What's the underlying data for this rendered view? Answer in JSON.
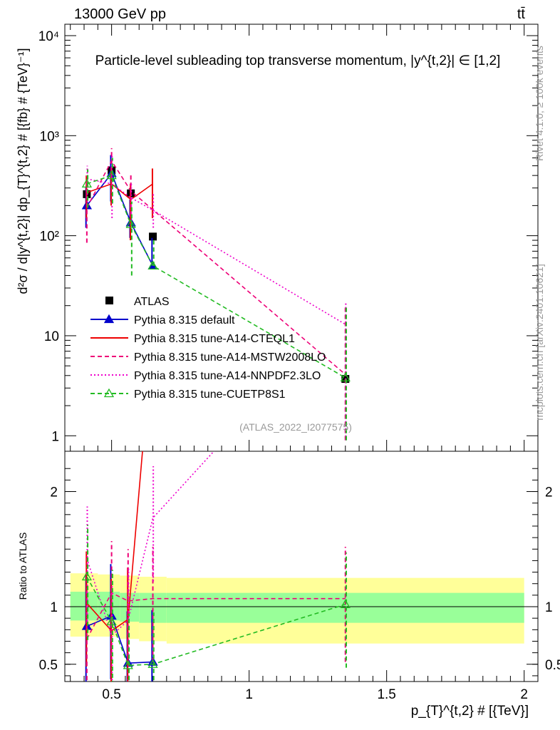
{
  "header": {
    "energy_label": "13000 GeV pp",
    "process_label": "tt̄",
    "side_label_rivet": "Rivet 4.1.0, ≥ 100k events",
    "side_label_mcplots": "mcplots.cern.ch [arXiv:2401.10621]"
  },
  "chart_data": [
    {
      "type": "line",
      "panel": "main",
      "title": "Particle-level subleading top transverse momentum, |y^{t,2}| ∈ [1,2]",
      "ylabel": "d²σ / d|y^{t,2}| dp_{T}^{t,2} # [{fb} # {TeV}⁻¹]",
      "yscale": "log",
      "xlim": [
        0.33,
        2.05
      ],
      "ylim": [
        0.7,
        13000
      ],
      "y_ticks": [
        {
          "value": 1,
          "label": "1"
        },
        {
          "value": 10,
          "label": "10"
        },
        {
          "value": 100,
          "label": "10²"
        },
        {
          "value": 1000,
          "label": "10³"
        },
        {
          "value": 10000,
          "label": "10⁴"
        }
      ],
      "analysis_tag": "(ATLAS_2022_I2077575)",
      "legend_position": "lower-left",
      "series": [
        {
          "name": "ATLAS",
          "color": "#000000",
          "style": "data",
          "x": [
            0.41,
            0.5,
            0.57,
            0.65,
            1.35
          ],
          "y": [
            260,
            450,
            265,
            98,
            3.7
          ]
        },
        {
          "name": "Pythia 8.315 default",
          "color": "#0000cc",
          "style": "solid-triangle",
          "x": [
            0.41,
            0.5,
            0.57,
            0.65
          ],
          "y": [
            200,
            420,
            135,
            50
          ],
          "err_lo": [
            120,
            220,
            95,
            49.9
          ],
          "err_hi": [
            310,
            640,
            230,
            95
          ]
        },
        {
          "name": "Pythia 8.315 tune-A14-CTEQL1",
          "color": "#ee0000",
          "style": "solid",
          "x": [
            0.41,
            0.5,
            0.57,
            0.65
          ],
          "y": [
            270,
            330,
            230,
            330
          ],
          "err_lo": [
            150,
            200,
            90,
            150
          ],
          "err_hi": [
            400,
            480,
            330,
            470
          ]
        },
        {
          "name": "Pythia 8.315 tune-A14-MSTW2008LO",
          "color": "#ee0077",
          "style": "dashed",
          "x": [
            0.41,
            0.5,
            0.57,
            1.35
          ],
          "y": [
            190,
            560,
            280,
            4.1
          ],
          "err_lo": [
            85,
            380,
            160,
            0.9
          ],
          "err_hi": [
            370,
            750,
            420,
            20
          ]
        },
        {
          "name": "Pythia 8.315 tune-A14-NNPDF2.3LO",
          "color": "#ee00cc",
          "style": "dotted",
          "x": [
            0.41,
            0.5,
            0.57,
            0.65,
            1.35
          ],
          "y": [
            370,
            330,
            240,
            180,
            13
          ],
          "err_lo": [
            200,
            150,
            130,
            120,
            0.9
          ],
          "err_hi": [
            500,
            650,
            330,
            260,
            22
          ]
        },
        {
          "name": "Pythia 8.315 tune-CUETP8S1",
          "color": "#22bb22",
          "style": "dashed-open-triangle",
          "x": [
            0.41,
            0.5,
            0.57,
            0.65,
            1.35
          ],
          "y": [
            330,
            400,
            130,
            50,
            3.8
          ],
          "err_lo": [
            190,
            210,
            40,
            49.9,
            0.9
          ],
          "err_hi": [
            460,
            600,
            220,
            90,
            20
          ]
        }
      ]
    },
    {
      "type": "line",
      "panel": "ratio",
      "xlabel": "p_{T}^{t,2} # [{TeV}]",
      "ylabel": "Ratio to ATLAS",
      "xlim": [
        0.33,
        2.05
      ],
      "ylim": [
        0.35,
        2.35
      ],
      "x_ticks": [
        {
          "value": 0.5,
          "label": "0.5"
        },
        {
          "value": 1,
          "label": "1"
        },
        {
          "value": 1.5,
          "label": "1.5"
        },
        {
          "value": 2,
          "label": "2"
        }
      ],
      "y_ticks": [
        {
          "value": 0.5,
          "label": "0.5"
        },
        {
          "value": 1,
          "label": "1"
        },
        {
          "value": 2,
          "label": "2"
        }
      ],
      "uncertainty_bands": {
        "bin_edges": [
          0.35,
          0.45,
          0.53,
          0.6,
          0.7,
          2.0
        ],
        "stat": [
          [
            0.88,
            1.13
          ],
          [
            0.88,
            1.13
          ],
          [
            0.87,
            1.12
          ],
          [
            0.86,
            1.12
          ],
          [
            0.86,
            1.12
          ]
        ],
        "total": [
          [
            0.74,
            1.29
          ],
          [
            0.74,
            1.28
          ],
          [
            0.72,
            1.27
          ],
          [
            0.7,
            1.26
          ],
          [
            0.68,
            1.25
          ]
        ],
        "stat_color": "#99ff99",
        "total_color": "#ffff99"
      },
      "series": [
        {
          "name": "Pythia 8.315 default",
          "color": "#0000cc",
          "x": [
            0.41,
            0.5,
            0.56,
            0.65
          ],
          "y": [
            0.83,
            0.92,
            0.51,
            0.52
          ]
        },
        {
          "name": "Pythia 8.315 tune-A14-CTEQL1",
          "color": "#ee0000",
          "x": [
            0.41,
            0.5,
            0.56,
            0.65
          ],
          "y": [
            1.03,
            0.79,
            0.89,
            3.4
          ]
        },
        {
          "name": "Pythia 8.315 tune-A14-MSTW2008LO",
          "color": "#ee0077",
          "x": [
            0.41,
            0.5,
            0.56,
            0.65,
            1.35
          ],
          "y": [
            0.72,
            1.12,
            1.05,
            1.07,
            1.07
          ]
        },
        {
          "name": "Pythia 8.315 tune-A14-NNPDF2.3LO",
          "color": "#ee00cc",
          "x": [
            0.41,
            0.5,
            0.56,
            0.65,
            1.35
          ],
          "y": [
            1.42,
            0.75,
            0.88,
            1.77,
            3.6
          ]
        },
        {
          "name": "Pythia 8.315 tune-CUETP8S1",
          "color": "#22bb22",
          "x": [
            0.41,
            0.5,
            0.56,
            0.65,
            1.35
          ],
          "y": [
            1.26,
            0.87,
            0.49,
            0.5,
            1.02
          ]
        }
      ]
    }
  ]
}
